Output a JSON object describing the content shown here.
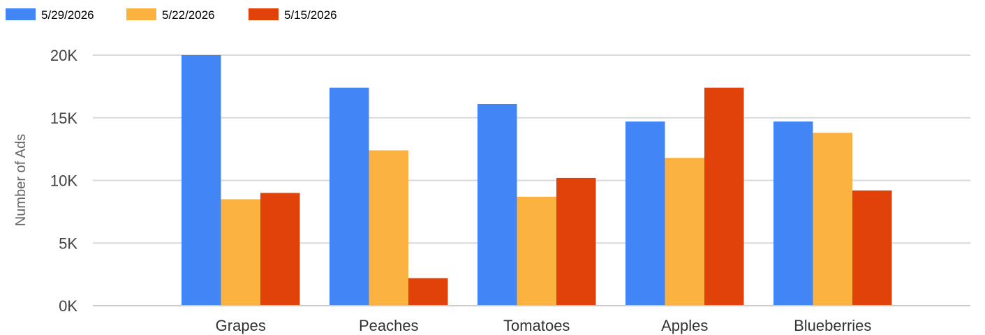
{
  "chart_data": {
    "type": "bar",
    "categories": [
      "Grapes",
      "Peaches",
      "Tomatoes",
      "Apples",
      "Blueberries"
    ],
    "series": [
      {
        "name": "5/29/2026",
        "color": "#4285f4",
        "values": [
          20000,
          17400,
          16100,
          14700,
          14700
        ]
      },
      {
        "name": "5/22/2026",
        "color": "#fbb241",
        "values": [
          8500,
          12400,
          8700,
          11800,
          13800
        ]
      },
      {
        "name": "5/15/2026",
        "color": "#e0420a",
        "values": [
          9000,
          2200,
          10200,
          17400,
          9200
        ]
      }
    ],
    "ylabel": "Number of Ads",
    "ylim": [
      0,
      20000
    ],
    "yticks": [
      0,
      5000,
      10000,
      15000,
      20000
    ],
    "ytick_labels": [
      "0K",
      "5K",
      "10K",
      "15K",
      "20K"
    ],
    "grid": true,
    "legend_position": "top-left"
  }
}
